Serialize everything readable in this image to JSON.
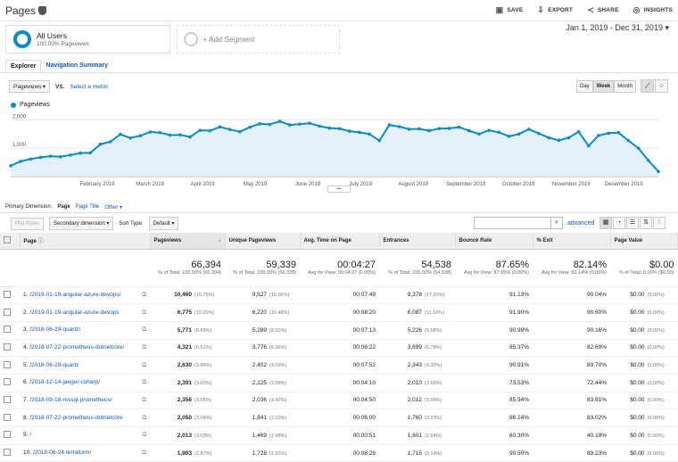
{
  "header": {
    "title": "Pages",
    "save": "SAVE",
    "export": "EXPORT",
    "share": "SHARE",
    "insights": "INSIGHTS"
  },
  "segment": {
    "name": "All Users",
    "sub": "100.00% Pageviews",
    "add": "+ Add Segment"
  },
  "date_range": "Jan 1, 2019 - Dec 31, 2019",
  "tabs": [
    "Explorer",
    "Navigation Summary"
  ],
  "metric": {
    "selected": "Pageviews",
    "vs": "VS.",
    "select": "Select a metric"
  },
  "granularity": [
    "Day",
    "Week",
    "Month"
  ],
  "legend": "Pageviews",
  "chart_data": {
    "type": "line",
    "y_ticks": [
      "2,000",
      "1,000"
    ],
    "x_labels": [
      "February 2019",
      "March 2019",
      "April 2019",
      "May 2019",
      "June 2019",
      "July 2019",
      "August 2019",
      "September 2019",
      "October 2019",
      "November 2019",
      "December 2019"
    ],
    "series": [
      {
        "name": "Pageviews",
        "values": [
          380,
          540,
          620,
          680,
          720,
          700,
          760,
          830,
          840,
          1140,
          1230,
          1490,
          1360,
          1440,
          1570,
          1550,
          1460,
          1470,
          1400,
          1630,
          1620,
          1750,
          1660,
          1580,
          1740,
          1860,
          1840,
          1950,
          1820,
          1850,
          1880,
          1780,
          1710,
          1690,
          1600,
          1560,
          1500,
          1270,
          1820,
          1760,
          1670,
          1680,
          1620,
          1690,
          1700,
          1740,
          1620,
          1500,
          1630,
          1560,
          1420,
          1500,
          1670,
          1520,
          1370,
          1280,
          1370,
          1580,
          1080,
          1450,
          1530,
          1550,
          1270,
          1000,
          570,
          180
        ]
      }
    ],
    "ylim": [
      0,
      2200
    ],
    "color": "#058dc7"
  },
  "dimension": {
    "label": "Primary Dimension:",
    "page": "Page",
    "page_title": "Page Title",
    "other": "Other"
  },
  "toolbar": {
    "plot": "Plot Rows",
    "secondary": "Secondary dimension",
    "sort_label": "Sort Type:",
    "sort": "Default",
    "advanced": "advanced"
  },
  "table": {
    "headers": [
      "Page",
      "Pageviews",
      "Unique Pageviews",
      "Avg. Time on Page",
      "Entrances",
      "Bounce Rate",
      "% Exit",
      "Page Value"
    ],
    "totals": [
      [
        "66,394",
        "% of Total: 100.00% (66,394)"
      ],
      [
        "59,339",
        "% of Total: 100.00% (59,339)"
      ],
      [
        "00:04:27",
        "Avg for View: 00:04:27 (0.00%)"
      ],
      [
        "54,538",
        "% of Total: 100.00% (54,538)"
      ],
      [
        "87.65%",
        "Avg for View: 87.65% (0.00%)"
      ],
      [
        "82.14%",
        "Avg for View: 82.14% (0.00%)"
      ],
      [
        "$0.00",
        "% of Total: 0.00% ($0.00)"
      ]
    ],
    "rows": [
      {
        "n": "1.",
        "page": "/2019-01-19-angular-azure-devops/",
        "pv": "10,460",
        "pvp": "(15.75%)",
        "up": "9,527",
        "upp": "(16.06%)",
        "t": "00:07:49",
        "e": "9,378",
        "ep": "(17.20%)",
        "b": "91.13%",
        "x": "90.04%",
        "v": "$0.00",
        "vp": "(0.00%)"
      },
      {
        "n": "2.",
        "page": "/2019-01-19-angular-azure-devops",
        "pv": "6,775",
        "pvp": "(10.20%)",
        "up": "6,220",
        "upp": "(10.48%)",
        "t": "00:08:20",
        "e": "6,087",
        "ep": "(11.16%)",
        "b": "91.90%",
        "x": "90.60%",
        "v": "$0.00",
        "vp": "(0.00%)"
      },
      {
        "n": "3.",
        "page": "/2018-06-29-quartz/",
        "pv": "5,771",
        "pvp": "(8.69%)",
        "up": "5,289",
        "upp": "(8.91%)",
        "t": "00:07:13",
        "e": "5,226",
        "ep": "(9.58%)",
        "b": "90.99%",
        "x": "90.16%",
        "v": "$0.00",
        "vp": "(0.00%)"
      },
      {
        "n": "4.",
        "page": "/2018-07-22-prometheus-dotnetcore/",
        "pv": "4,321",
        "pvp": "(6.51%)",
        "up": "3,776",
        "upp": "(6.36%)",
        "t": "00:06:22",
        "e": "3,699",
        "ep": "(6.78%)",
        "b": "85.37%",
        "x": "82.69%",
        "v": "$0.00",
        "vp": "(0.00%)"
      },
      {
        "n": "5.",
        "page": "/2018-06-29-quartz",
        "pv": "2,630",
        "pvp": "(3.96%)",
        "up": "2,402",
        "upp": "(4.05%)",
        "t": "00:07:52",
        "e": "2,343",
        "ep": "(4.30%)",
        "b": "90.91%",
        "x": "89.70%",
        "v": "$0.00",
        "vp": "(0.00%)"
      },
      {
        "n": "6.",
        "page": "/2018-12-14-jaeger-csharp/",
        "pv": "2,391",
        "pvp": "(3.60%)",
        "up": "2,125",
        "upp": "(3.58%)",
        "t": "00:04:10",
        "e": "2,010",
        "ep": "(3.69%)",
        "b": "73.53%",
        "x": "72.44%",
        "v": "$0.00",
        "vp": "(0.00%)"
      },
      {
        "n": "7.",
        "page": "/2018-09-18-mssql-prometheus/",
        "pv": "2,356",
        "pvp": "(3.55%)",
        "up": "2,036",
        "upp": "(3.42%)",
        "t": "00:04:50",
        "e": "2,012",
        "ep": "(3.69%)",
        "b": "85.54%",
        "x": "83.91%",
        "v": "$0.00",
        "vp": "(0.00%)"
      },
      {
        "n": "8.",
        "page": "/2018-07-22-prometheus-dotnetcore",
        "pv": "2,050",
        "pvp": "(3.09%)",
        "up": "1,841",
        "upp": "(3.10%)",
        "t": "00:06:00",
        "e": "1,760",
        "ep": "(3.23%)",
        "b": "86.14%",
        "x": "83.02%",
        "v": "$0.00",
        "vp": "(0.00%)"
      },
      {
        "n": "9.",
        "page": "/",
        "pv": "2,013",
        "pvp": "(3.03%)",
        "up": "1,469",
        "upp": "(2.48%)",
        "t": "00:00:51",
        "e": "1,601",
        "ep": "(2.94%)",
        "b": "60.30%",
        "x": "40.19%",
        "v": "$0.00",
        "vp": "(0.00%)"
      },
      {
        "n": "10.",
        "page": "/2018-06-24-terraform/",
        "pv": "1,903",
        "pvp": "(2.87%)",
        "up": "1,728",
        "upp": "(2.91%)",
        "t": "00:06:28",
        "e": "1,715",
        "ep": "(3.14%)",
        "b": "90.50%",
        "x": "89.23%",
        "v": "$0.00",
        "vp": "(0.00%)"
      }
    ]
  }
}
